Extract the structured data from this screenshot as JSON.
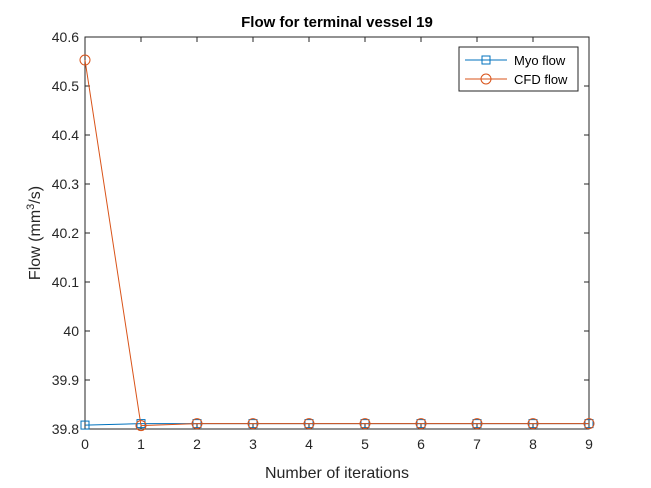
{
  "chart_data": {
    "type": "line",
    "title": "Flow for terminal vessel 19",
    "xlabel": "Number of iterations",
    "ylabel_main": "Flow (mm",
    "ylabel_sup": "3",
    "ylabel_tail": "/s)",
    "x": [
      0,
      1,
      2,
      3,
      4,
      5,
      6,
      7,
      8,
      9
    ],
    "xlim": [
      0,
      9
    ],
    "ylim": [
      39.8,
      40.6
    ],
    "xticks": [
      "0",
      "1",
      "2",
      "3",
      "4",
      "5",
      "6",
      "7",
      "8",
      "9"
    ],
    "yticks": [
      "39.8",
      "39.9",
      "40",
      "40.1",
      "40.2",
      "40.3",
      "40.4",
      "40.5",
      "40.6"
    ],
    "series": [
      {
        "name": "Myo flow",
        "marker": "square",
        "color": "#0072BD",
        "values": [
          39.808,
          39.811,
          39.811,
          39.811,
          39.811,
          39.811,
          39.811,
          39.811,
          39.811,
          39.811
        ]
      },
      {
        "name": "CFD flow",
        "marker": "circle",
        "color": "#D95319",
        "values": [
          40.553,
          39.807,
          39.811,
          39.811,
          39.811,
          39.811,
          39.811,
          39.811,
          39.811,
          39.811
        ]
      }
    ],
    "legend": "top-right",
    "grid": false
  }
}
